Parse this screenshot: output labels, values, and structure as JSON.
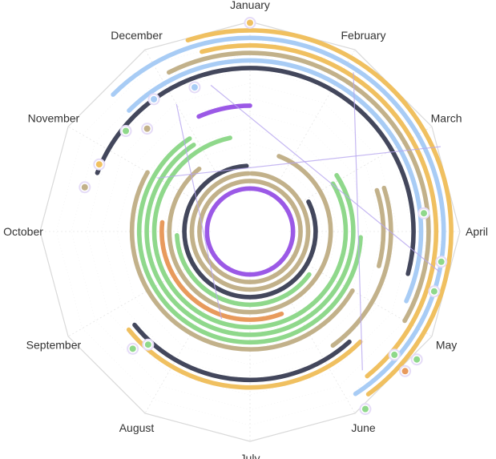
{
  "chart_data": {
    "type": "radial-bar",
    "angle_axis": {
      "type": "category",
      "categories": [
        "January",
        "February",
        "March",
        "April",
        "May",
        "June",
        "July",
        "August",
        "September",
        "October",
        "November",
        "December"
      ],
      "shape": "polygon",
      "grid": true
    },
    "ring_count": 22,
    "rings": [
      {
        "color": "#9b59e6",
        "start": 0,
        "end": 12
      },
      {
        "color": "#c2b18a",
        "start": 0,
        "end": 12
      },
      {
        "color": "#c2b18a",
        "start": 0.05,
        "end": 11.95
      },
      {
        "color": "#43475c",
        "start": 2.1,
        "end": 11.9
      },
      {
        "color": "#8fd88b",
        "start": 4.2,
        "end": 8.9
      },
      {
        "color": "#c2b18a",
        "start": 0.7,
        "end": 10.7
      },
      {
        "color": "#e89a5c",
        "start": 5.3,
        "end": 9.2
      },
      {
        "color": "#8fd88b",
        "start": 2.0,
        "end": 11.6
      },
      {
        "color": "#8fd88b",
        "start": 1.9,
        "end": 10.9
      },
      {
        "color": "#8fd88b",
        "start": 3.1,
        "end": 10.9
      },
      {
        "color": "#c2b18a",
        "start": 4.0,
        "end": 10.0
      },
      {
        "color": "#9b59e6",
        "start": 11.2,
        "end": 12.0
      },
      {
        "color": "#c2b18a",
        "start": 2.4,
        "end": 3.5
      },
      {
        "color": "#c2b18a",
        "start": 2.4,
        "end": 4.8
      },
      {
        "color": "#43475c",
        "start": 4.6,
        "end": 7.7
      },
      {
        "color": "#f0c060",
        "start": 4.5,
        "end": 7.7
      },
      {
        "color": "#43475c",
        "start": 9.7,
        "end": 3.5
      },
      {
        "color": "#a8ccf5",
        "start": 10.5,
        "end": 3.8
      },
      {
        "color": "#c2b18a",
        "start": 11.1,
        "end": 4.0
      },
      {
        "color": "#f0c060",
        "start": 11.5,
        "end": 4.7
      },
      {
        "color": "#a8ccf5",
        "start": 10.5,
        "end": 4.9
      },
      {
        "color": "#f0c060",
        "start": 11.4,
        "end": 4.8
      }
    ],
    "points": [
      {
        "color": "#f0c060",
        "angle": 0.0,
        "ring": 22.0
      },
      {
        "color": "#a8ccf5",
        "angle": 11.3,
        "ring": 14.8
      },
      {
        "color": "#c2b18a",
        "angle": 10.5,
        "ring": 13.6
      },
      {
        "color": "#8fd88b",
        "angle": 10.3,
        "ring": 15.5
      },
      {
        "color": "#f0c060",
        "angle": 9.8,
        "ring": 16.2
      },
      {
        "color": "#c2b18a",
        "angle": 9.5,
        "ring": 17.0
      },
      {
        "color": "#8fd88b",
        "angle": 7.4,
        "ring": 14.5
      },
      {
        "color": "#8fd88b",
        "angle": 7.5,
        "ring": 16.3
      },
      {
        "color": "#8fd88b",
        "angle": 2.8,
        "ring": 17.5
      },
      {
        "color": "#8fd88b",
        "angle": 3.3,
        "ring": 20.0
      },
      {
        "color": "#8fd88b",
        "angle": 3.6,
        "ring": 20.0
      },
      {
        "color": "#8fd88b",
        "angle": 4.35,
        "ring": 19.5
      },
      {
        "color": "#8fd88b",
        "angle": 4.25,
        "ring": 22.2
      },
      {
        "color": "#e89a5c",
        "angle": 4.4,
        "ring": 22.0
      },
      {
        "color": "#8fd88b",
        "angle": 4.9,
        "ring": 22.4
      },
      {
        "color": "#a8ccf5",
        "angle": 10.8,
        "ring": 16.0
      }
    ],
    "lines": [
      {
        "from": [
          11.0,
          13.8
        ],
        "to": [
          6.6,
          6.5
        ]
      },
      {
        "from": [
          1.1,
          19.5
        ],
        "to": [
          4.7,
          18.0
        ]
      },
      {
        "from": [
          10.0,
          8.5
        ],
        "to": [
          2.2,
          22.0
        ]
      },
      {
        "from": [
          11.5,
          14.4
        ],
        "to": [
          3.4,
          20.0
        ]
      }
    ]
  },
  "colors": {
    "purple": "#9b59e6",
    "tan": "#c2b18a",
    "charcoal": "#43475c",
    "green": "#8fd88b",
    "orange": "#e89a5c",
    "blue": "#a8ccf5",
    "gold": "#f0c060",
    "axis": "#d9d9d9",
    "label": "#333333"
  }
}
